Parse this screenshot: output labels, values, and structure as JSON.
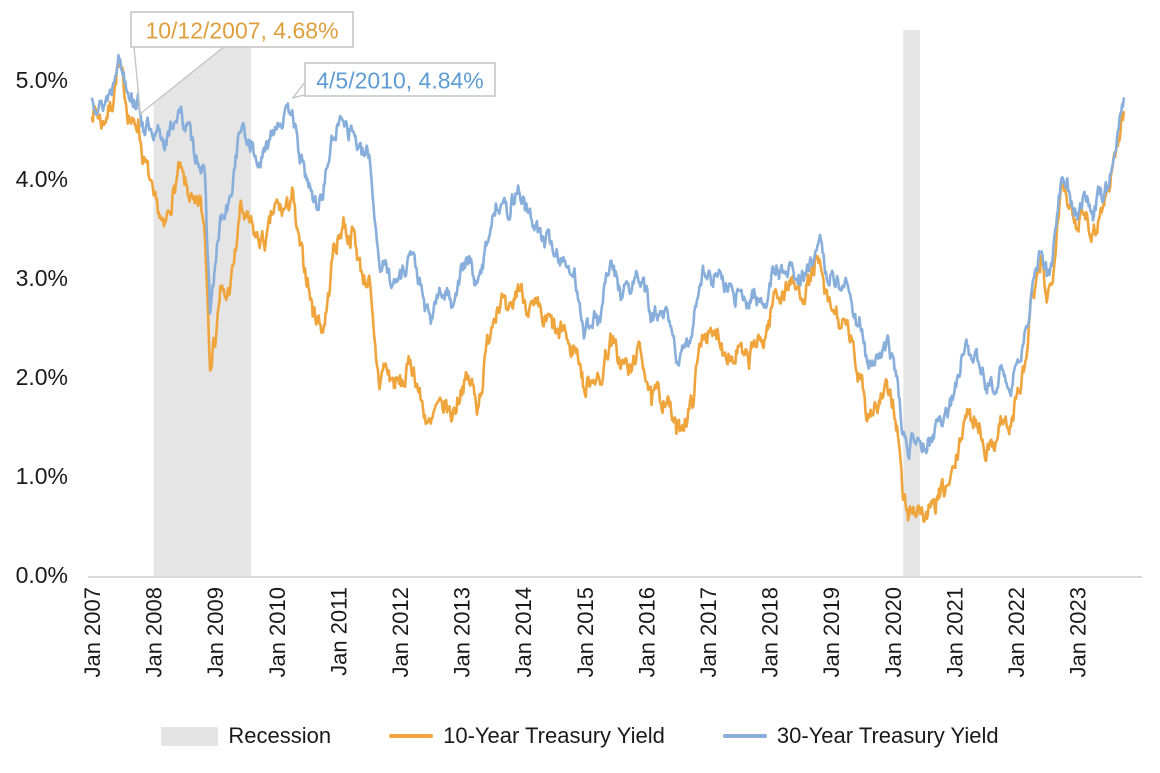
{
  "chart_data": {
    "type": "line",
    "title": "",
    "x_axis": {
      "tick_labels": [
        "Jan 2007",
        "Jan 2008",
        "Jan 2009",
        "Jan 2010",
        "Jan 2011",
        "Jan 2012",
        "Jan 2013",
        "Jan 2014",
        "Jan 2015",
        "Jan 2016",
        "Jan 2017",
        "Jan 2018",
        "Jan 2019",
        "Jan 2020",
        "Jan 2021",
        "Jan 2022",
        "Jan 2023"
      ],
      "range_years": [
        2007.0,
        2023.9
      ]
    },
    "y_axis": {
      "tick_labels": [
        "0.0%",
        "1.0%",
        "2.0%",
        "3.0%",
        "4.0%",
        "5.0%"
      ],
      "tick_values": [
        0,
        1,
        2,
        3,
        4,
        5
      ],
      "ylim": [
        0,
        5.5
      ],
      "unit": "%"
    },
    "recession_bands": [
      {
        "label": "Recession",
        "from_year": 2008.0,
        "to_year": 2009.585
      },
      {
        "label": "Recession",
        "from_year": 2020.17,
        "to_year": 2020.44
      }
    ],
    "series": [
      {
        "name": "10-Year Treasury Yield",
        "color": "#EFA43C",
        "start": "2007-01",
        "interval": "monthly",
        "values": [
          4.72,
          4.7,
          4.58,
          4.68,
          4.8,
          5.15,
          5.02,
          4.7,
          4.55,
          4.6,
          4.2,
          4.08,
          3.78,
          3.7,
          3.48,
          3.7,
          3.9,
          4.12,
          3.98,
          3.86,
          3.7,
          3.8,
          3.5,
          2.2,
          2.4,
          2.9,
          2.8,
          2.95,
          3.3,
          3.75,
          3.6,
          3.55,
          3.42,
          3.4,
          3.38,
          3.65,
          3.75,
          3.7,
          3.72,
          3.88,
          3.45,
          3.22,
          3.0,
          2.68,
          2.62,
          2.5,
          2.8,
          3.3,
          3.4,
          3.6,
          3.42,
          3.48,
          3.18,
          3.02,
          2.98,
          2.35,
          1.95,
          2.15,
          2.02,
          1.95,
          1.96,
          1.98,
          2.2,
          2.02,
          1.8,
          1.62,
          1.5,
          1.7,
          1.7,
          1.73,
          1.63,
          1.74,
          1.92,
          1.99,
          1.95,
          1.73,
          1.95,
          2.35,
          2.6,
          2.76,
          2.8,
          2.6,
          2.74,
          2.95,
          2.85,
          2.72,
          2.7,
          2.7,
          2.55,
          2.6,
          2.52,
          2.41,
          2.55,
          2.28,
          2.32,
          2.2,
          1.85,
          2.0,
          2.05,
          1.92,
          2.22,
          2.38,
          2.3,
          2.15,
          2.15,
          2.05,
          2.28,
          2.25,
          2.05,
          1.75,
          1.88,
          1.78,
          1.82,
          1.62,
          1.45,
          1.56,
          1.62,
          1.78,
          2.18,
          2.5,
          2.44,
          2.4,
          2.5,
          2.28,
          2.28,
          2.18,
          2.32,
          2.2,
          2.18,
          2.38,
          2.34,
          2.41,
          2.6,
          2.88,
          2.85,
          2.88,
          3.0,
          2.92,
          2.88,
          2.88,
          3.02,
          3.18,
          3.1,
          2.8,
          2.7,
          2.66,
          2.52,
          2.52,
          2.38,
          2.05,
          2.06,
          1.6,
          1.7,
          1.7,
          1.82,
          1.88,
          1.78,
          1.45,
          0.8,
          0.64,
          0.68,
          0.72,
          0.6,
          0.66,
          0.69,
          0.82,
          0.88,
          0.93,
          1.1,
          1.3,
          1.65,
          1.6,
          1.6,
          1.5,
          1.3,
          1.28,
          1.4,
          1.6,
          1.55,
          1.48,
          1.8,
          1.95,
          2.2,
          2.8,
          2.92,
          3.2,
          2.85,
          2.95,
          3.6,
          4.05,
          3.85,
          3.6,
          3.52,
          3.78,
          3.62,
          3.45,
          3.6,
          3.78,
          3.92,
          4.2,
          4.42,
          4.68
        ]
      },
      {
        "name": "30-Year Treasury Yield",
        "color": "#88AFDB",
        "start": "2007-01",
        "interval": "monthly",
        "values": [
          4.82,
          4.8,
          4.74,
          4.86,
          4.95,
          5.28,
          5.12,
          4.95,
          4.82,
          4.8,
          4.55,
          4.55,
          4.35,
          4.52,
          4.4,
          4.45,
          4.62,
          4.7,
          4.58,
          4.5,
          4.3,
          4.2,
          4.0,
          2.7,
          3.1,
          3.6,
          3.65,
          3.8,
          4.25,
          4.55,
          4.42,
          4.38,
          4.2,
          4.2,
          4.32,
          4.52,
          4.6,
          4.62,
          4.65,
          4.78,
          4.35,
          4.15,
          4.0,
          3.82,
          3.75,
          3.9,
          4.2,
          4.45,
          4.55,
          4.68,
          4.52,
          4.5,
          4.3,
          4.25,
          4.28,
          3.7,
          3.15,
          3.15,
          3.05,
          2.95,
          3.05,
          3.12,
          3.3,
          3.15,
          2.92,
          2.7,
          2.58,
          2.8,
          2.86,
          2.88,
          2.78,
          2.9,
          3.1,
          3.18,
          3.15,
          2.9,
          3.12,
          3.42,
          3.63,
          3.78,
          3.8,
          3.66,
          3.82,
          3.92,
          3.8,
          3.65,
          3.6,
          3.5,
          3.38,
          3.42,
          3.32,
          3.2,
          3.25,
          3.02,
          3.05,
          2.8,
          2.45,
          2.6,
          2.62,
          2.58,
          2.98,
          3.12,
          3.06,
          2.85,
          2.94,
          2.88,
          3.04,
          2.98,
          2.85,
          2.6,
          2.68,
          2.6,
          2.64,
          2.44,
          2.2,
          2.26,
          2.34,
          2.52,
          2.88,
          3.12,
          3.02,
          3.02,
          3.1,
          2.92,
          2.95,
          2.78,
          2.88,
          2.78,
          2.76,
          2.88,
          2.78,
          2.76,
          2.9,
          3.14,
          3.08,
          3.06,
          3.14,
          3.04,
          3.02,
          3.04,
          3.16,
          3.36,
          3.35,
          3.06,
          3.02,
          3.0,
          2.95,
          2.93,
          2.8,
          2.55,
          2.58,
          2.1,
          2.16,
          2.18,
          2.26,
          2.32,
          2.24,
          1.92,
          1.4,
          1.28,
          1.4,
          1.5,
          1.3,
          1.38,
          1.44,
          1.6,
          1.62,
          1.68,
          1.85,
          2.08,
          2.36,
          2.28,
          2.3,
          2.14,
          1.92,
          1.92,
          1.96,
          2.05,
          1.92,
          1.9,
          2.12,
          2.26,
          2.48,
          2.88,
          3.08,
          3.3,
          3.08,
          3.18,
          3.62,
          4.1,
          3.98,
          3.78,
          3.64,
          3.82,
          3.84,
          3.66,
          3.88,
          3.88,
          3.96,
          4.3,
          4.5,
          4.8
        ]
      }
    ],
    "annotations": [
      {
        "text": "10/12/2007, 4.68%",
        "date": "10/12/2007",
        "value": 4.68,
        "anchor_year": 2007.786,
        "color": "#DF9E3C"
      },
      {
        "text": "4/5/2010, 4.84%",
        "date": "4/5/2010",
        "value": 4.84,
        "anchor_year": 2010.261,
        "color": "#5F9CD4"
      }
    ],
    "legend": [
      {
        "label": "Recession",
        "type": "area",
        "color": "#E4E4E4"
      },
      {
        "label": "10-Year Treasury Yield",
        "type": "line",
        "color": "#EFA43C"
      },
      {
        "label": "30-Year Treasury Yield",
        "type": "line",
        "color": "#88AFDB"
      }
    ],
    "style": {
      "band_color": "#E5E5E5",
      "axis_line_color": "#D9D9D9",
      "label_color": "#1A1A1A",
      "callout_border_color": "#C6C6C6",
      "grid": "off",
      "legend_position": "bottom"
    }
  }
}
